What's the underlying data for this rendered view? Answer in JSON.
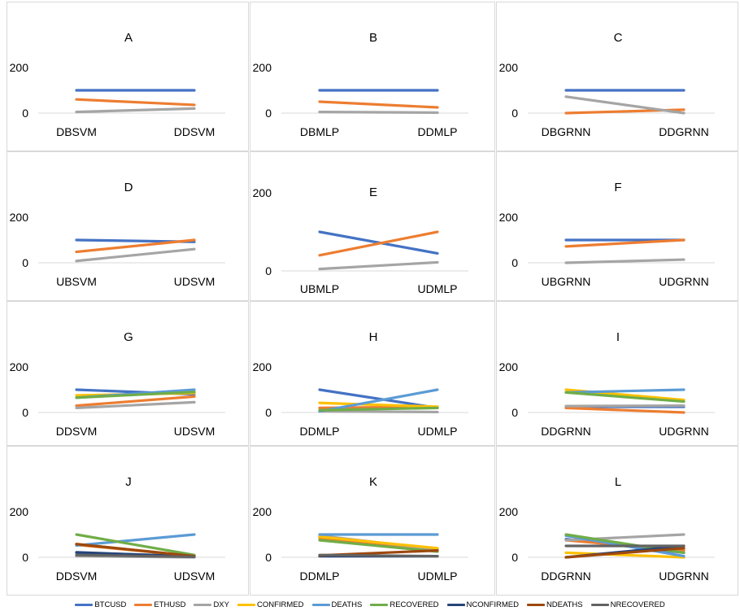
{
  "series_colors": {
    "BTCUSD": "#4472c4",
    "ETHUSD": "#ed7d31",
    "DXY": "#a5a5a5",
    "CONFIRMED": "#ffc000",
    "DEATHS": "#5b9bd5",
    "RECOVERED": "#70ad47",
    "NCONFIRMED": "#264478",
    "NDEATHS": "#9e480e",
    "NRECOVERED": "#636363"
  },
  "legend": [
    "BTCUSD",
    "ETHUSD",
    "DXY",
    "CONFIRMED",
    "DEATHS",
    "RECOVERED",
    "NCONFIRMED",
    "NDEATHS",
    "NRECOVERED"
  ],
  "chart_data": [
    {
      "type": "line",
      "title": "A",
      "categories": [
        "DBSVM",
        "DDSVM"
      ],
      "yticks": [
        0,
        200
      ],
      "ylim": [
        0,
        200
      ],
      "series": [
        {
          "name": "BTCUSD",
          "values": [
            100,
            100
          ]
        },
        {
          "name": "ETHUSD",
          "values": [
            60,
            36
          ]
        },
        {
          "name": "DXY",
          "values": [
            5,
            20
          ]
        }
      ]
    },
    {
      "type": "line",
      "title": "B",
      "categories": [
        "DBMLP",
        "DDMLP"
      ],
      "yticks": [
        0,
        200
      ],
      "ylim": [
        0,
        200
      ],
      "series": [
        {
          "name": "BTCUSD",
          "values": [
            100,
            100
          ]
        },
        {
          "name": "ETHUSD",
          "values": [
            50,
            25
          ]
        },
        {
          "name": "DXY",
          "values": [
            5,
            2
          ]
        }
      ]
    },
    {
      "type": "line",
      "title": "C",
      "categories": [
        "DBGRNN",
        "DDGRNN"
      ],
      "yticks": [
        0,
        200
      ],
      "ylim": [
        0,
        200
      ],
      "series": [
        {
          "name": "BTCUSD",
          "values": [
            100,
            100
          ]
        },
        {
          "name": "ETHUSD",
          "values": [
            0,
            15
          ]
        },
        {
          "name": "DXY",
          "values": [
            72,
            0
          ]
        }
      ]
    },
    {
      "type": "line",
      "title": "D",
      "categories": [
        "UBSVM",
        "UDSVM"
      ],
      "yticks": [
        0,
        200
      ],
      "ylim": [
        0,
        200
      ],
      "series": [
        {
          "name": "BTCUSD",
          "values": [
            100,
            92
          ]
        },
        {
          "name": "ETHUSD",
          "values": [
            48,
            100
          ]
        },
        {
          "name": "DXY",
          "values": [
            8,
            60
          ]
        }
      ]
    },
    {
      "type": "line",
      "title": "E",
      "categories": [
        "UBMLP",
        "UDMLP"
      ],
      "yticks": [
        0,
        200
      ],
      "ylim": [
        0,
        200
      ],
      "series": [
        {
          "name": "BTCUSD",
          "values": [
            100,
            45
          ]
        },
        {
          "name": "ETHUSD",
          "values": [
            40,
            100
          ]
        },
        {
          "name": "DXY",
          "values": [
            5,
            22
          ]
        }
      ]
    },
    {
      "type": "line",
      "title": "F",
      "categories": [
        "UBGRNN",
        "UDGRNN"
      ],
      "yticks": [
        0,
        200
      ],
      "ylim": [
        0,
        200
      ],
      "series": [
        {
          "name": "BTCUSD",
          "values": [
            100,
            100
          ]
        },
        {
          "name": "ETHUSD",
          "values": [
            72,
            100
          ]
        },
        {
          "name": "DXY",
          "values": [
            0,
            14
          ]
        }
      ]
    },
    {
      "type": "line",
      "title": "G",
      "categories": [
        "DDSVM",
        "UDSVM"
      ],
      "yticks": [
        0,
        200
      ],
      "ylim": [
        0,
        200
      ],
      "series": [
        {
          "name": "BTCUSD",
          "values": [
            100,
            80
          ]
        },
        {
          "name": "ETHUSD",
          "values": [
            30,
            70
          ]
        },
        {
          "name": "DXY",
          "values": [
            20,
            45
          ]
        },
        {
          "name": "CONFIRMED",
          "values": [
            75,
            85
          ]
        },
        {
          "name": "DEATHS",
          "values": [
            65,
            100
          ]
        },
        {
          "name": "RECOVERED",
          "values": [
            65,
            90
          ]
        }
      ]
    },
    {
      "type": "line",
      "title": "H",
      "categories": [
        "DDMLP",
        "UDMLP"
      ],
      "yticks": [
        0,
        200
      ],
      "ylim": [
        0,
        200
      ],
      "series": [
        {
          "name": "BTCUSD",
          "values": [
            100,
            20
          ]
        },
        {
          "name": "ETHUSD",
          "values": [
            20,
            25
          ]
        },
        {
          "name": "DXY",
          "values": [
            5,
            2
          ]
        },
        {
          "name": "CONFIRMED",
          "values": [
            42,
            25
          ]
        },
        {
          "name": "DEATHS",
          "values": [
            5,
            100
          ]
        },
        {
          "name": "RECOVERED",
          "values": [
            10,
            20
          ]
        }
      ]
    },
    {
      "type": "line",
      "title": "I",
      "categories": [
        "DDGRNN",
        "UDGRNN"
      ],
      "yticks": [
        0,
        200
      ],
      "ylim": [
        0,
        200
      ],
      "series": [
        {
          "name": "BTCUSD",
          "values": [
            25,
            25
          ]
        },
        {
          "name": "ETHUSD",
          "values": [
            20,
            0
          ]
        },
        {
          "name": "DXY",
          "values": [
            28,
            30
          ]
        },
        {
          "name": "CONFIRMED",
          "values": [
            100,
            55
          ]
        },
        {
          "name": "DEATHS",
          "values": [
            88,
            100
          ]
        },
        {
          "name": "RECOVERED",
          "values": [
            88,
            48
          ]
        }
      ]
    },
    {
      "type": "line",
      "title": "J",
      "categories": [
        "DDSVM",
        "UDSVM"
      ],
      "yticks": [
        0,
        200
      ],
      "ylim": [
        0,
        200
      ],
      "series": [
        {
          "name": "BTCUSD",
          "values": [
            20,
            5
          ]
        },
        {
          "name": "ETHUSD",
          "values": [
            55,
            5
          ]
        },
        {
          "name": "DXY",
          "values": [
            5,
            0
          ]
        },
        {
          "name": "CONFIRMED",
          "values": [
            58,
            5
          ]
        },
        {
          "name": "DEATHS",
          "values": [
            52,
            100
          ]
        },
        {
          "name": "RECOVERED",
          "values": [
            100,
            10
          ]
        },
        {
          "name": "NCONFIRMED",
          "values": [
            22,
            3
          ]
        },
        {
          "name": "NDEATHS",
          "values": [
            58,
            5
          ]
        },
        {
          "name": "NRECOVERED",
          "values": [
            10,
            2
          ]
        }
      ]
    },
    {
      "type": "line",
      "title": "K",
      "categories": [
        "DDMLP",
        "UDMLP"
      ],
      "yticks": [
        0,
        200
      ],
      "ylim": [
        0,
        200
      ],
      "series": [
        {
          "name": "BTCUSD",
          "values": [
            90,
            35
          ]
        },
        {
          "name": "ETHUSD",
          "values": [
            85,
            30
          ]
        },
        {
          "name": "DXY",
          "values": [
            95,
            35
          ]
        },
        {
          "name": "CONFIRMED",
          "values": [
            90,
            40
          ]
        },
        {
          "name": "DEATHS",
          "values": [
            100,
            100
          ]
        },
        {
          "name": "RECOVERED",
          "values": [
            75,
            25
          ]
        },
        {
          "name": "NCONFIRMED",
          "values": [
            5,
            5
          ]
        },
        {
          "name": "NDEATHS",
          "values": [
            8,
            30
          ]
        },
        {
          "name": "NRECOVERED",
          "values": [
            10,
            5
          ]
        }
      ]
    },
    {
      "type": "line",
      "title": "L",
      "categories": [
        "DDGRNN",
        "UDGRNN"
      ],
      "yticks": [
        0,
        200
      ],
      "ylim": [
        0,
        200
      ],
      "series": [
        {
          "name": "BTCUSD",
          "values": [
            80,
            20
          ]
        },
        {
          "name": "ETHUSD",
          "values": [
            75,
            30
          ]
        },
        {
          "name": "DXY",
          "values": [
            75,
            100
          ]
        },
        {
          "name": "CONFIRMED",
          "values": [
            20,
            0
          ]
        },
        {
          "name": "DEATHS",
          "values": [
            95,
            5
          ]
        },
        {
          "name": "RECOVERED",
          "values": [
            100,
            20
          ]
        },
        {
          "name": "NCONFIRMED",
          "values": [
            0,
            50
          ]
        },
        {
          "name": "NDEATHS",
          "values": [
            0,
            40
          ]
        },
        {
          "name": "NRECOVERED",
          "values": [
            50,
            50
          ]
        }
      ]
    }
  ]
}
